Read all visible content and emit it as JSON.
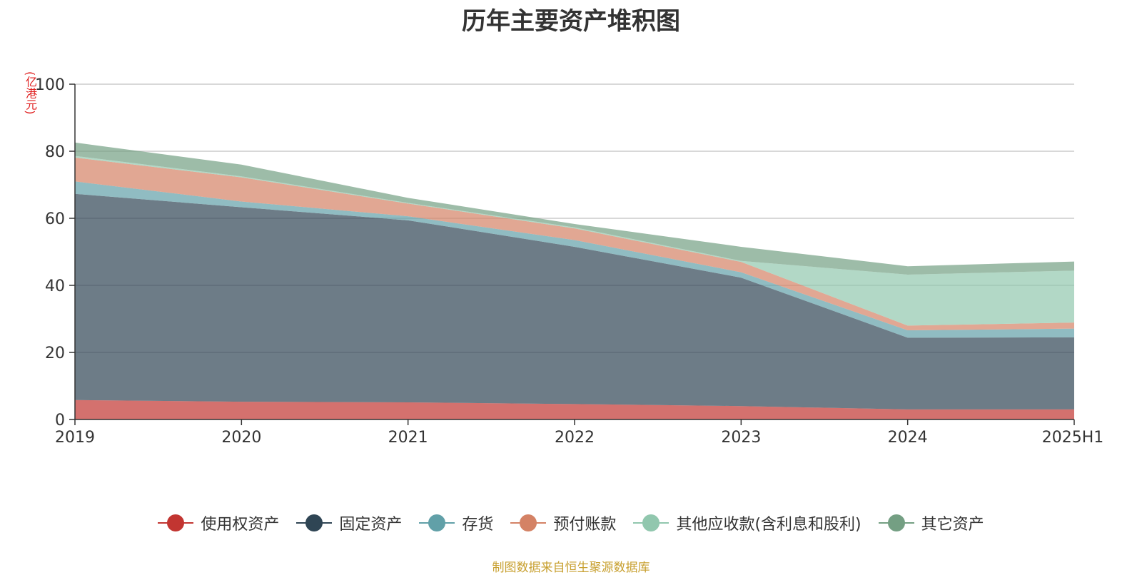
{
  "chart_data": {
    "type": "area",
    "stacked": true,
    "title": "历年主要资产堆积图",
    "ylabel": "(亿港元)",
    "xlabel": "",
    "categories": [
      "2019",
      "2020",
      "2021",
      "2022",
      "2023",
      "2024",
      "2025H1"
    ],
    "ylim": [
      0,
      100
    ],
    "yticks": [
      0,
      20,
      40,
      60,
      80,
      100
    ],
    "grid": true,
    "legend_position": "bottom",
    "series": [
      {
        "name": "使用权资产",
        "color": "#c23531",
        "values": [
          5.8,
          5.3,
          5.1,
          4.6,
          4.0,
          3.0,
          3.0
        ]
      },
      {
        "name": "固定资产",
        "color": "#2f4554",
        "values": [
          61.5,
          58.0,
          54.3,
          46.9,
          38.3,
          21.4,
          21.5
        ]
      },
      {
        "name": "存货",
        "color": "#61a0a8",
        "values": [
          3.7,
          1.7,
          1.2,
          2.0,
          1.6,
          2.2,
          2.6
        ]
      },
      {
        "name": "预付账款",
        "color": "#d48265",
        "values": [
          7.1,
          7.2,
          3.8,
          3.5,
          3.1,
          1.4,
          1.8
        ]
      },
      {
        "name": "其他应收款(含利息和股利)",
        "color": "#91c7ae",
        "values": [
          0.5,
          0.3,
          0.2,
          0.3,
          0.3,
          15.2,
          15.5
        ]
      },
      {
        "name": "其它资产",
        "color": "#749f83",
        "values": [
          4.0,
          3.5,
          1.5,
          1.0,
          4.2,
          2.5,
          2.7
        ]
      }
    ]
  },
  "source_note": "制图数据来自恒生聚源数据库"
}
